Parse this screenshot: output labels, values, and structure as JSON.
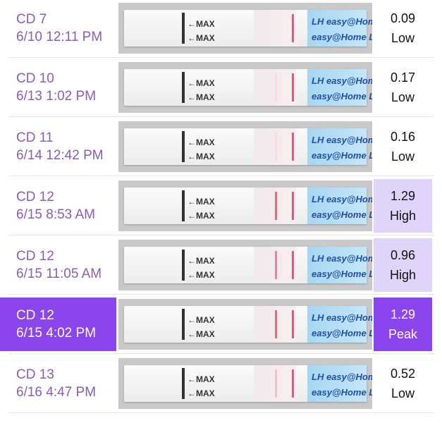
{
  "strip_text": {
    "max": "←MAX",
    "brand_1": "LH easy@Home LH",
    "brand_2": "easy@Home LH"
  },
  "rows": [
    {
      "cd": "CD 7",
      "datetime": "6/10 12:11 PM",
      "value": "0.09",
      "level": "Low",
      "style": "low",
      "test_line_intensity": 0.0
    },
    {
      "cd": "CD 10",
      "datetime": "6/13 1:02 PM",
      "value": "0.17",
      "level": "Low",
      "style": "low",
      "test_line_intensity": 0.1
    },
    {
      "cd": "CD 11",
      "datetime": "6/14 12:42 PM",
      "value": "0.16",
      "level": "Low",
      "style": "low",
      "test_line_intensity": 0.1
    },
    {
      "cd": "CD 12",
      "datetime": "6/15 8:53 AM",
      "value": "1.29",
      "level": "High",
      "style": "high",
      "test_line_intensity": 0.9
    },
    {
      "cd": "CD 12",
      "datetime": "6/15 11:05 AM",
      "value": "0.96",
      "level": "High",
      "style": "high",
      "test_line_intensity": 0.7
    },
    {
      "cd": "CD 12",
      "datetime": "6/15 4:02 PM",
      "value": "1.29",
      "level": "Peak",
      "style": "peak",
      "test_line_intensity": 0.9
    },
    {
      "cd": "CD 13",
      "datetime": "6/16 4:47 PM",
      "value": "0.52",
      "level": "Low",
      "style": "low",
      "test_line_intensity": 0.3
    }
  ],
  "colors": {
    "label_text": "#8b5bb8",
    "peak_bg": "#8a45ec",
    "high_bg": "#e1d4fb",
    "line": "#d4607e"
  }
}
